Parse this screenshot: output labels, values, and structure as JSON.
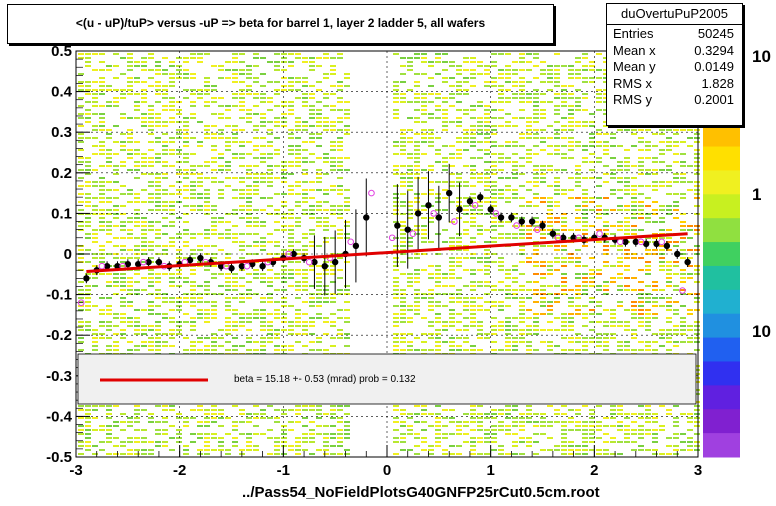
{
  "title": "<(u - uP)/tuP> versus  -uP => beta for barrel 1, layer 2 ladder 5, all wafers",
  "stats": {
    "name": "duOvertuPuP2005",
    "rows": [
      {
        "label": "Entries",
        "value": "50245"
      },
      {
        "label": "Mean x",
        "value": "0.3294"
      },
      {
        "label": "Mean y",
        "value": "0.0149"
      },
      {
        "label": "RMS x",
        "value": "1.828"
      },
      {
        "label": "RMS y",
        "value": "0.2001"
      }
    ]
  },
  "legend_text": "beta =   15.18 +-  0.53 (mrad) prob = 0.132",
  "footer": "../Pass54_NoFieldPlotsG40GNFP25rCut0.5cm.root",
  "colorbar_labels": [
    "10",
    "1",
    "10"
  ],
  "colors": {
    "fit": "#e00000",
    "points_black": "#000000",
    "points_open": "#e040e0",
    "legend_fill": "#f0f0f0"
  },
  "chart_data": {
    "type": "scatter",
    "xlim": [
      -3,
      3
    ],
    "ylim": [
      -0.5,
      0.5
    ],
    "x_ticks": [
      "-3",
      "-2",
      "-1",
      "0",
      "1",
      "2",
      "3"
    ],
    "y_ticks": [
      "-0.5",
      "-0.4",
      "-0.3",
      "-0.2",
      "-0.1",
      "0",
      "0.1",
      "0.2",
      "0.3",
      "0.4",
      "0.5"
    ],
    "grid": true,
    "fit_line": {
      "x": [
        -2.9,
        2.9
      ],
      "y": [
        -0.043,
        0.05
      ]
    },
    "series": [
      {
        "marker": "filled",
        "x": [
          -2.9,
          -2.8,
          -2.7,
          -2.6,
          -2.5,
          -2.4,
          -2.3,
          -2.2,
          -2.1,
          -2.0,
          -1.9,
          -1.8,
          -1.7,
          -1.6,
          -1.5,
          -1.4,
          -1.3,
          -1.2,
          -1.1,
          -1.0,
          -0.9,
          -0.8,
          -0.7,
          -0.6,
          -0.5,
          -0.4,
          -0.3,
          -0.2,
          0.1,
          0.2,
          0.3,
          0.4,
          0.5,
          0.6,
          0.7,
          0.8,
          0.9,
          1.0,
          1.1,
          1.2,
          1.3,
          1.4,
          1.5,
          1.6,
          1.7,
          1.8,
          1.9,
          2.0,
          2.1,
          2.2,
          2.3,
          2.4,
          2.5,
          2.6,
          2.7,
          2.8,
          2.9
        ],
        "y": [
          -0.06,
          -0.04,
          -0.03,
          -0.03,
          -0.025,
          -0.025,
          -0.02,
          -0.02,
          -0.03,
          -0.025,
          -0.015,
          -0.01,
          -0.02,
          -0.03,
          -0.035,
          -0.03,
          -0.025,
          -0.03,
          -0.02,
          -0.01,
          0.0,
          -0.01,
          -0.02,
          -0.03,
          -0.02,
          0.0,
          0.02,
          0.09,
          0.07,
          0.06,
          0.1,
          0.12,
          0.09,
          0.15,
          0.11,
          0.13,
          0.14,
          0.11,
          0.09,
          0.09,
          0.08,
          0.08,
          0.07,
          0.05,
          0.04,
          0.04,
          0.035,
          0.04,
          0.04,
          0.035,
          0.03,
          0.03,
          0.025,
          0.025,
          0.02,
          0.0,
          -0.02
        ]
      },
      {
        "marker": "open",
        "x": [
          -2.95,
          -2.75,
          -2.55,
          -2.35,
          -2.15,
          -1.95,
          -1.75,
          -1.55,
          -1.35,
          -1.15,
          -0.95,
          -0.75,
          -0.55,
          -0.35,
          -0.15,
          0.05,
          0.25,
          0.45,
          0.65,
          0.85,
          1.05,
          1.25,
          1.45,
          1.65,
          1.85,
          2.05,
          2.25,
          2.45,
          2.65,
          2.85
        ],
        "y": [
          -0.12,
          -0.03,
          -0.03,
          -0.02,
          -0.03,
          -0.02,
          -0.02,
          -0.03,
          -0.03,
          -0.02,
          0.0,
          -0.02,
          -0.01,
          0.03,
          0.15,
          0.04,
          0.05,
          0.1,
          0.08,
          0.12,
          0.1,
          0.07,
          0.06,
          0.04,
          0.04,
          0.05,
          0.03,
          0.03,
          0.03,
          -0.09
        ]
      }
    ]
  }
}
